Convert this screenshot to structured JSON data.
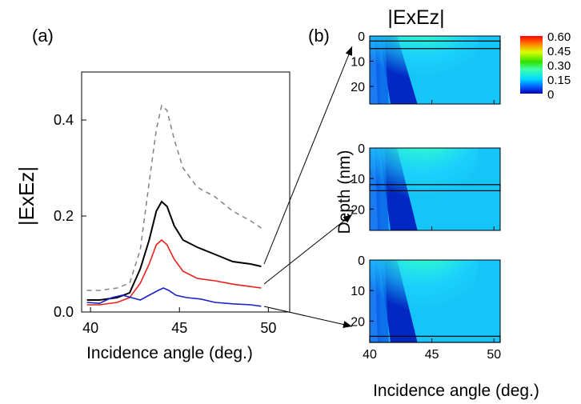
{
  "panel_labels": {
    "a": "(a)",
    "b": "(b)"
  },
  "colors": {
    "dashed": "#888888",
    "black": "#000000",
    "red": "#e8201c",
    "blue": "#1a22c8"
  },
  "chart_data": [
    {
      "type": "line",
      "panel": "(a)",
      "xlabel": "Incidence angle (deg.)",
      "ylabel": "|ExEz|",
      "xlim": [
        39.5,
        51.2
      ],
      "ylim": [
        0,
        0.5
      ],
      "xticks": [
        "40",
        "45",
        "50"
      ],
      "yticks": [
        "0.0",
        "0.2",
        "0.4"
      ],
      "series": [
        {
          "style": "dashed-gray",
          "x": [
            39.8,
            40.5,
            41.5,
            42.2,
            42.8,
            43.3,
            43.7,
            44.0,
            44.3,
            44.7,
            45.2,
            46.0,
            47.0,
            48.0,
            49.0,
            49.6
          ],
          "y": [
            0.045,
            0.045,
            0.05,
            0.06,
            0.13,
            0.27,
            0.38,
            0.43,
            0.42,
            0.36,
            0.3,
            0.26,
            0.24,
            0.21,
            0.19,
            0.175
          ]
        },
        {
          "style": "black",
          "x": [
            39.8,
            40.5,
            41.5,
            42.2,
            42.8,
            43.3,
            43.7,
            44.0,
            44.3,
            44.7,
            45.2,
            46.0,
            47.0,
            48.0,
            49.0,
            49.6
          ],
          "y": [
            0.025,
            0.025,
            0.03,
            0.04,
            0.09,
            0.15,
            0.21,
            0.23,
            0.22,
            0.18,
            0.15,
            0.135,
            0.12,
            0.105,
            0.1,
            0.095
          ]
        },
        {
          "style": "red",
          "x": [
            39.8,
            40.5,
            41.5,
            42.2,
            42.8,
            43.3,
            43.7,
            44.0,
            44.3,
            44.7,
            45.2,
            46.0,
            47.0,
            48.0,
            49.0,
            49.6
          ],
          "y": [
            0.015,
            0.015,
            0.02,
            0.03,
            0.06,
            0.1,
            0.14,
            0.15,
            0.14,
            0.11,
            0.085,
            0.07,
            0.065,
            0.058,
            0.053,
            0.05
          ]
        },
        {
          "style": "blue",
          "x": [
            39.8,
            40.5,
            41.2,
            41.8,
            42.3,
            42.8,
            43.3,
            43.8,
            44.1,
            44.4,
            44.8,
            45.4,
            46.2,
            47.0,
            48.0,
            49.0,
            49.6
          ],
          "y": [
            0.02,
            0.018,
            0.03,
            0.035,
            0.03,
            0.025,
            0.035,
            0.045,
            0.05,
            0.045,
            0.035,
            0.03,
            0.027,
            0.02,
            0.017,
            0.015,
            0.012
          ]
        }
      ]
    },
    {
      "type": "heatmap",
      "panel": "(b)",
      "title": "|ExEz|",
      "xlabel": "Incidence angle (deg.)",
      "ylabel": "Depth (nm)",
      "xlim": [
        40,
        50.5
      ],
      "ylim": [
        0,
        27
      ],
      "xticks": [
        "40",
        "45",
        "50"
      ],
      "yticks": [
        "0",
        "10",
        "20"
      ],
      "colorbar": {
        "min": 0,
        "max": 0.6,
        "ticks": [
          "0.60",
          "0.45",
          "0.30",
          "0.15",
          "0"
        ]
      },
      "maps": [
        {
          "depth_band": [
            2,
            5
          ]
        },
        {
          "depth_band": [
            12,
            14
          ]
        },
        {
          "depth_band": [
            25,
            27
          ]
        }
      ]
    }
  ]
}
